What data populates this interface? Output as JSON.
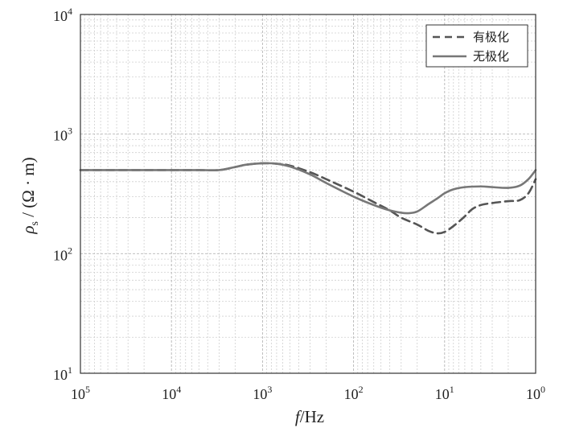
{
  "chart_data": {
    "type": "line",
    "xscale": "log",
    "yscale": "log",
    "x_reversed": true,
    "xlim": [
      100000,
      1
    ],
    "ylim": [
      10,
      10000
    ],
    "xlabel": {
      "var": "f",
      "unit": "/Hz"
    },
    "ylabel": {
      "var": "ρ",
      "sub": "s",
      "unit": " / (Ω · m)"
    },
    "x_ticks": [
      {
        "base": "10",
        "exp": "5",
        "value": 100000
      },
      {
        "base": "10",
        "exp": "4",
        "value": 10000
      },
      {
        "base": "10",
        "exp": "3",
        "value": 1000
      },
      {
        "base": "10",
        "exp": "2",
        "value": 100
      },
      {
        "base": "10",
        "exp": "1",
        "value": 10
      },
      {
        "base": "10",
        "exp": "0",
        "value": 1
      }
    ],
    "y_ticks": [
      {
        "base": "10",
        "exp": "1",
        "value": 10
      },
      {
        "base": "10",
        "exp": "2",
        "value": 100
      },
      {
        "base": "10",
        "exp": "3",
        "value": 1000
      },
      {
        "base": "10",
        "exp": "4",
        "value": 10000
      }
    ],
    "grid": true,
    "legend_position": "top-right",
    "series": [
      {
        "name": "有极化",
        "style": "dashed",
        "color": "#555555",
        "points": [
          [
            100000,
            500
          ],
          [
            50000,
            500
          ],
          [
            20000,
            500
          ],
          [
            10000,
            500
          ],
          [
            5000,
            500
          ],
          [
            3000,
            500
          ],
          [
            2000,
            530
          ],
          [
            1500,
            555
          ],
          [
            1000,
            570
          ],
          [
            700,
            565
          ],
          [
            500,
            545
          ],
          [
            300,
            480
          ],
          [
            200,
            420
          ],
          [
            100,
            330
          ],
          [
            60,
            270
          ],
          [
            40,
            230
          ],
          [
            30,
            200
          ],
          [
            20,
            175
          ],
          [
            15,
            155
          ],
          [
            12,
            148
          ],
          [
            10,
            152
          ],
          [
            8,
            170
          ],
          [
            6,
            205
          ],
          [
            5,
            235
          ],
          [
            4,
            255
          ],
          [
            3,
            265
          ],
          [
            2,
            275
          ],
          [
            1.5,
            280
          ],
          [
            1.2,
            320
          ],
          [
            1,
            420
          ]
        ]
      },
      {
        "name": "无极化",
        "style": "solid",
        "color": "#777777",
        "points": [
          [
            100000,
            500
          ],
          [
            50000,
            500
          ],
          [
            20000,
            500
          ],
          [
            10000,
            500
          ],
          [
            5000,
            500
          ],
          [
            3000,
            500
          ],
          [
            2000,
            530
          ],
          [
            1500,
            555
          ],
          [
            1000,
            570
          ],
          [
            700,
            565
          ],
          [
            500,
            535
          ],
          [
            300,
            460
          ],
          [
            200,
            390
          ],
          [
            100,
            300
          ],
          [
            60,
            255
          ],
          [
            40,
            230
          ],
          [
            30,
            220
          ],
          [
            25,
            218
          ],
          [
            20,
            225
          ],
          [
            15,
            260
          ],
          [
            12,
            290
          ],
          [
            10,
            320
          ],
          [
            8,
            345
          ],
          [
            6,
            360
          ],
          [
            4,
            365
          ],
          [
            3,
            360
          ],
          [
            2,
            355
          ],
          [
            1.5,
            370
          ],
          [
            1.2,
            420
          ],
          [
            1,
            500
          ]
        ]
      }
    ]
  }
}
